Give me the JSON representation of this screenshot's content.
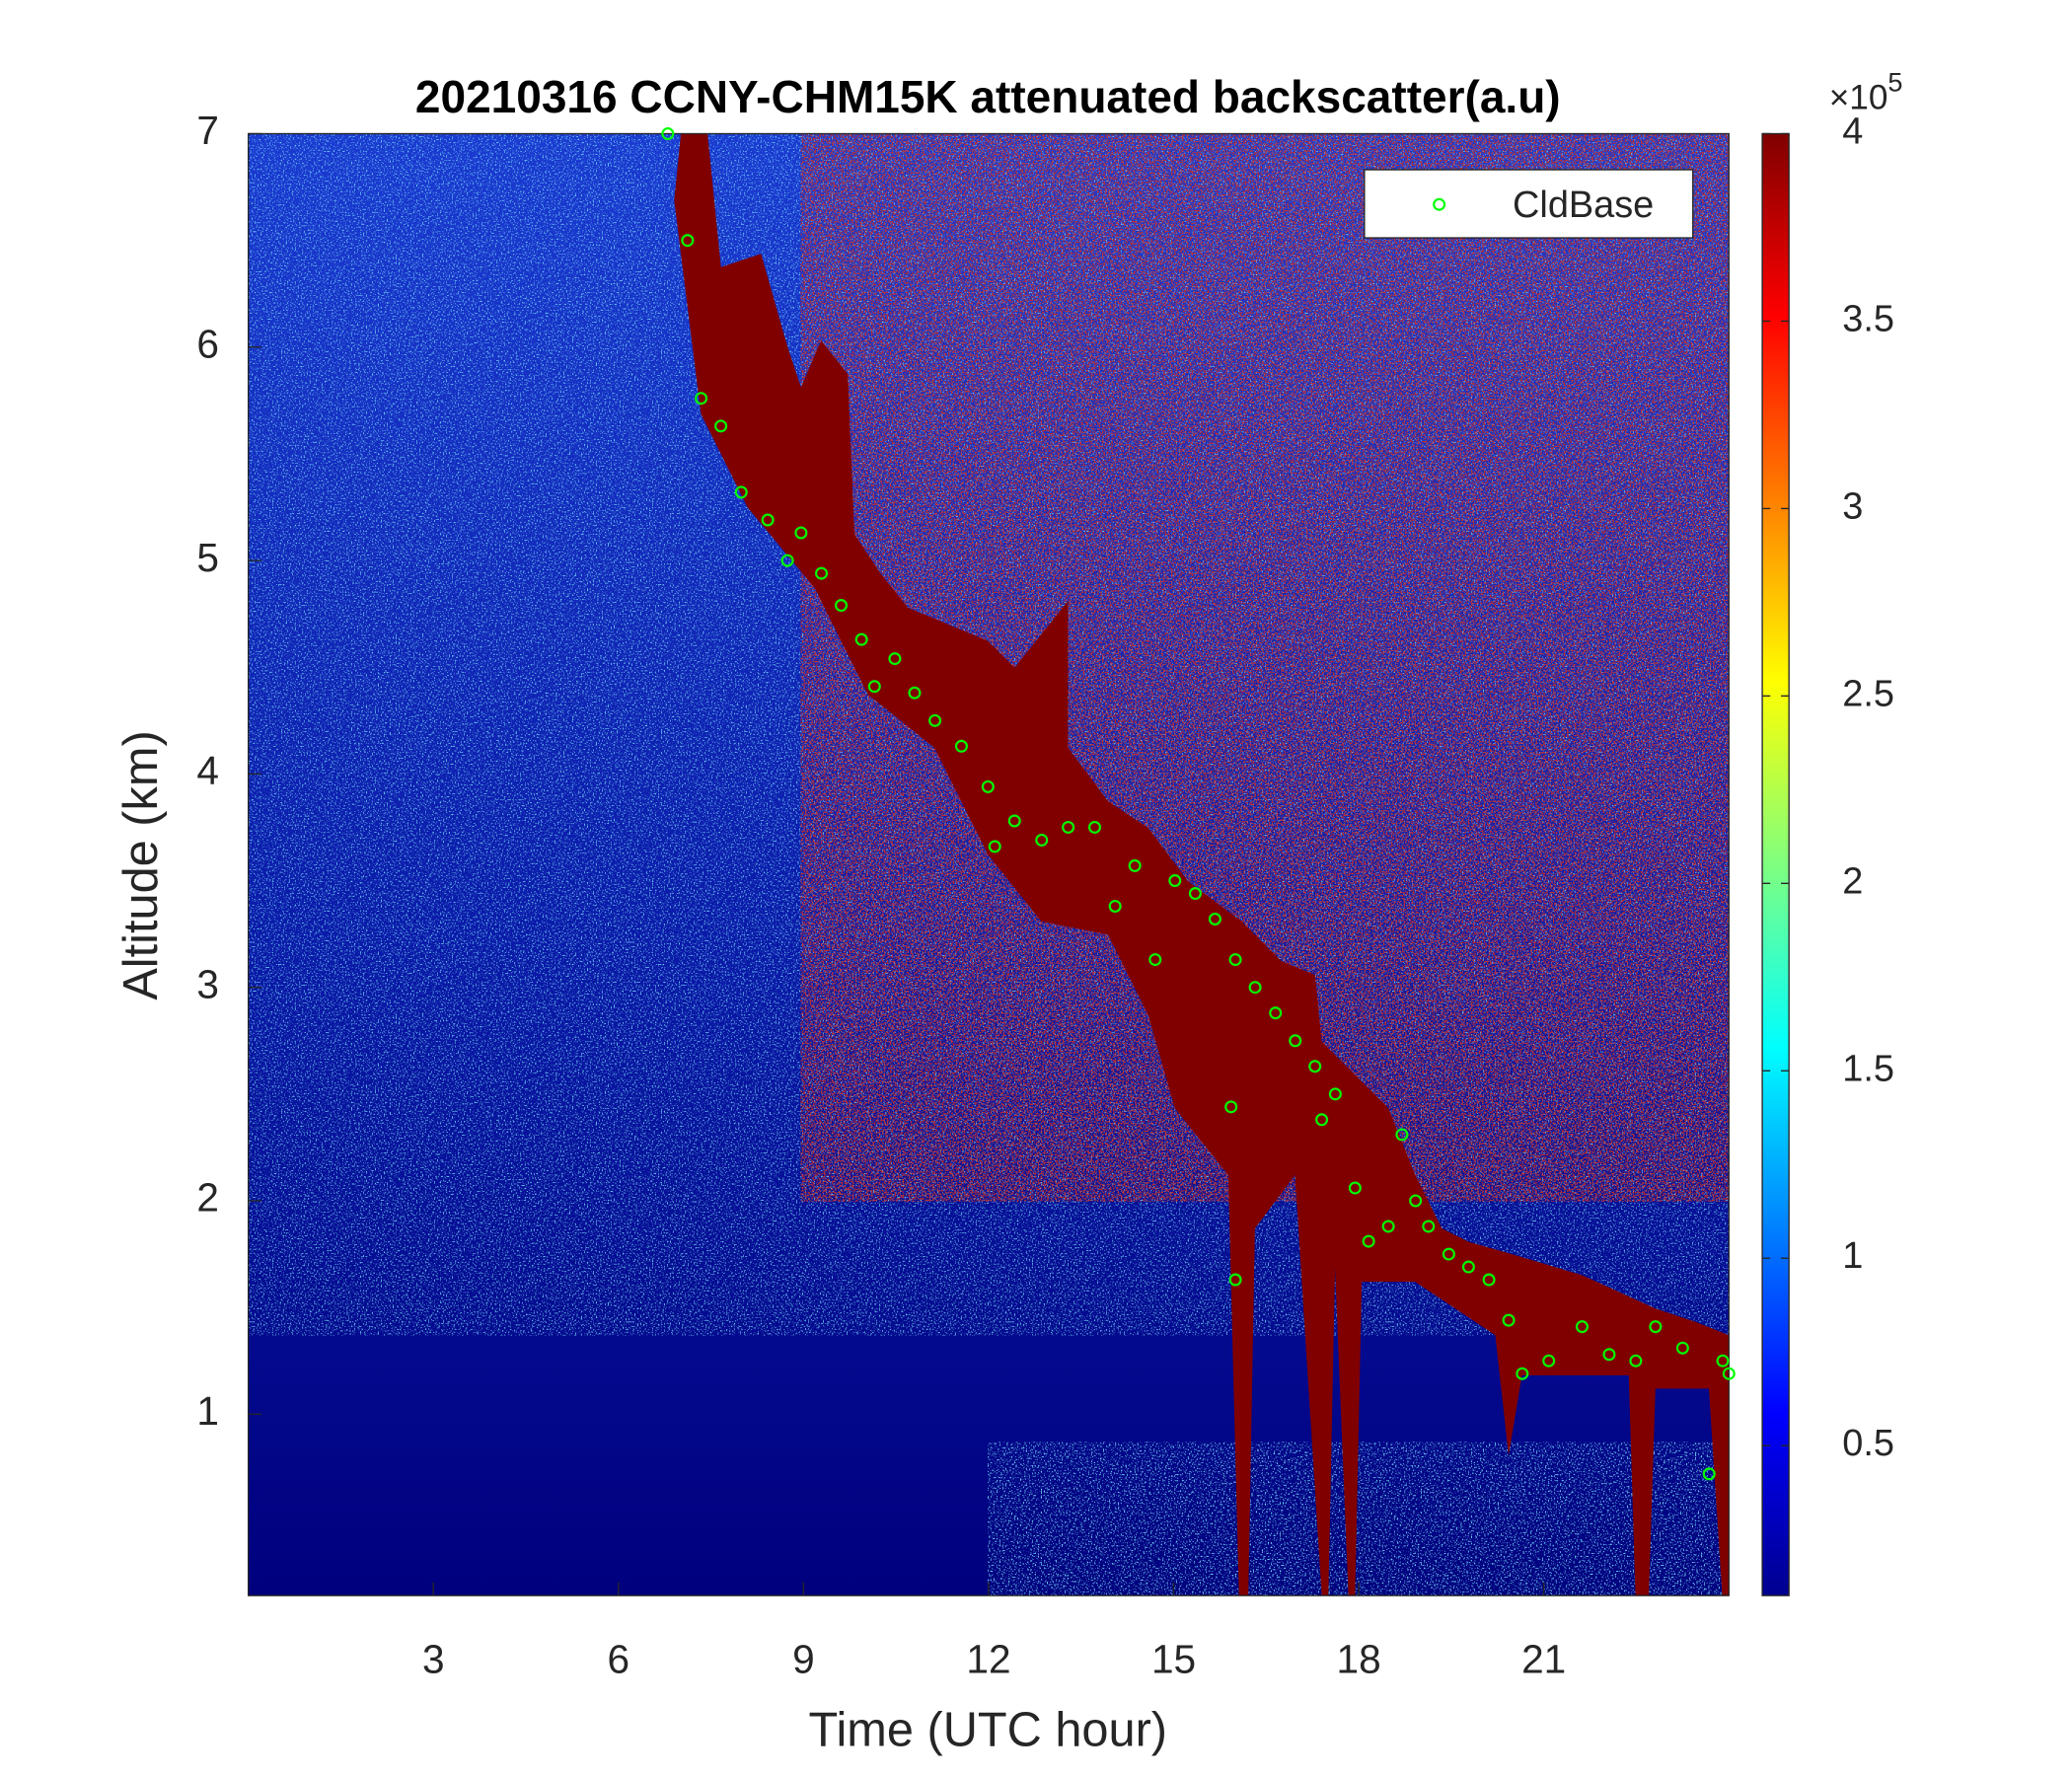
{
  "chart_data": {
    "type": "scatter",
    "title": "20210316 CCNY-CHM15K attenuated backscatter(a.u)",
    "xlabel": "Time (UTC hour)",
    "ylabel": "Altitude (km)",
    "xlim": [
      0,
      24
    ],
    "ylim": [
      0.15,
      7
    ],
    "xticks": [
      3,
      6,
      9,
      12,
      15,
      18,
      21
    ],
    "yticks": [
      1,
      2,
      3,
      4,
      5,
      6,
      7
    ],
    "legend": "northeast",
    "series": [
      {
        "name": "CldBase",
        "color": "#00ff00",
        "x": [
          6.8,
          7.12,
          7.34,
          7.66,
          7.99,
          8.42,
          8.74,
          8.96,
          9.29,
          9.61,
          9.94,
          10.15,
          10.48,
          10.8,
          11.13,
          11.56,
          11.99,
          12.1,
          12.42,
          12.86,
          13.29,
          13.72,
          14.05,
          14.37,
          14.7,
          15.02,
          15.35,
          15.67,
          16.0,
          15.93,
          16.0,
          16.32,
          16.65,
          16.97,
          17.29,
          17.4,
          17.62,
          17.94,
          18.16,
          18.48,
          18.7,
          18.92,
          19.13,
          19.46,
          19.78,
          20.11,
          20.43,
          20.65,
          21.08,
          21.62,
          22.06,
          22.49,
          22.81,
          23.25,
          23.68,
          23.9,
          24.0
        ],
        "values": [
          7.0,
          6.5,
          5.76,
          5.63,
          5.32,
          5.19,
          5.0,
          5.13,
          4.94,
          4.79,
          4.63,
          4.41,
          4.54,
          4.38,
          4.25,
          4.13,
          3.94,
          3.66,
          3.78,
          3.69,
          3.75,
          3.75,
          3.38,
          3.57,
          3.13,
          3.5,
          3.44,
          3.32,
          3.13,
          2.44,
          1.63,
          3.0,
          2.88,
          2.75,
          2.63,
          2.38,
          2.5,
          2.06,
          1.81,
          1.88,
          2.31,
          2.0,
          1.88,
          1.75,
          1.69,
          1.63,
          1.44,
          1.19,
          1.25,
          1.41,
          1.28,
          1.25,
          1.41,
          1.31,
          0.72,
          1.25,
          1.19
        ]
      }
    ],
    "colorbar": {
      "clim": [
        0.1,
        4
      ],
      "ticks": [
        0.5,
        1,
        1.5,
        2,
        2.5,
        3,
        3.5,
        4
      ],
      "multiplier": {
        "base": "×10",
        "exponent": "5"
      }
    }
  }
}
